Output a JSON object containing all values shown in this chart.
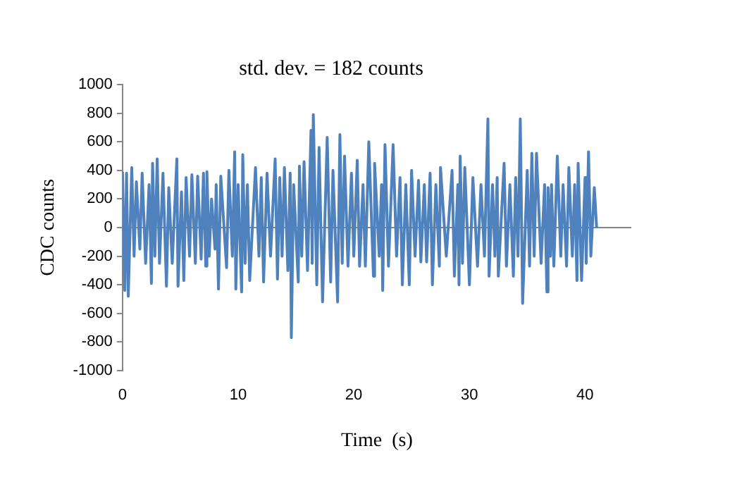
{
  "chart_data": {
    "type": "line",
    "title": "std. dev. = 182 counts",
    "xlabel": "Time  (s)",
    "ylabel": "CDC counts",
    "xlim": [
      0,
      44
    ],
    "xticks": [
      0,
      10,
      20,
      30,
      40
    ],
    "ylim": [
      -1000,
      1000
    ],
    "yticks": [
      {
        "value": -1000,
        "label": "-1000"
      },
      -800,
      -600,
      -400,
      -200,
      0,
      200,
      400,
      600,
      800,
      {
        "value": 1000,
        "label": "1000"
      }
    ],
    "series": [
      {
        "color": "#4f81bd",
        "x": [
          0,
          0.2,
          0.35,
          0.5,
          0.8,
          1.0,
          1.2,
          1.5,
          1.7,
          2.0,
          2.3,
          2.5,
          2.6,
          2.8,
          3.0,
          3.2,
          3.5,
          3.8,
          4.0,
          4.3,
          4.7,
          4.8,
          5.1,
          5.3,
          5.5,
          5.8,
          6.0,
          6.3,
          6.5,
          6.8,
          7.0,
          7.2,
          7.3,
          7.5,
          7.7,
          8.0,
          8.1,
          8.3,
          8.5,
          9.0,
          9.2,
          9.5,
          9.7,
          9.8,
          10.0,
          10.3,
          10.4,
          10.6,
          10.8,
          11.0,
          11.5,
          11.8,
          12.0,
          12.2,
          12.5,
          12.8,
          13.2,
          13.4,
          13.6,
          13.8,
          14.0,
          14.3,
          14.5,
          14.6,
          14.8,
          15.2,
          15.3,
          15.5,
          15.7,
          16.0,
          16.3,
          16.4,
          16.5,
          16.8,
          17.0,
          17.3,
          17.7,
          18.0,
          18.2,
          18.6,
          18.8,
          19.0,
          19.2,
          19.5,
          19.8,
          20.0,
          20.3,
          20.5,
          20.8,
          21.0,
          21.3,
          21.7,
          21.8,
          22.2,
          22.4,
          22.5,
          22.7,
          23.0,
          23.4,
          23.7,
          24.0,
          24.2,
          24.5,
          24.8,
          25.0,
          25.3,
          25.6,
          25.8,
          26.1,
          26.3,
          26.6,
          26.8,
          27.1,
          27.4,
          27.5,
          28.0,
          28.5,
          28.7,
          29.0,
          29.1,
          29.2,
          29.4,
          29.6,
          30.0,
          30.3,
          30.7,
          31.0,
          31.3,
          31.6,
          31.7,
          32.0,
          32.2,
          32.4,
          32.5,
          33.0,
          33.2,
          33.5,
          33.8,
          34.0,
          34.2,
          34.4,
          34.6,
          35.0,
          35.2,
          35.4,
          35.6,
          35.8,
          36.2,
          36.5,
          36.7,
          36.8,
          37.0,
          37.1,
          37.3,
          37.6,
          37.9,
          38.1,
          38.4,
          38.6,
          38.9,
          39.1,
          39.3,
          39.4,
          39.7,
          40.0,
          40.1,
          40.3,
          40.5,
          40.8,
          41.0
        ],
        "values": [
          390,
          -440,
          380,
          -480,
          420,
          -200,
          320,
          -150,
          380,
          -250,
          300,
          -390,
          450,
          -200,
          480,
          -250,
          380,
          -410,
          280,
          -250,
          480,
          -410,
          250,
          -370,
          350,
          -200,
          370,
          -250,
          360,
          -220,
          380,
          -270,
          390,
          -200,
          200,
          -150,
          300,
          -430,
          360,
          -280,
          400,
          -200,
          530,
          -430,
          300,
          -450,
          510,
          -250,
          300,
          -370,
          420,
          -200,
          350,
          -380,
          380,
          -200,
          480,
          -360,
          350,
          -200,
          420,
          -300,
          380,
          -770,
          300,
          -380,
          430,
          -200,
          460,
          -300,
          680,
          -250,
          790,
          -400,
          560,
          -520,
          630,
          -380,
          400,
          -520,
          650,
          -250,
          500,
          -270,
          380,
          -200,
          470,
          -270,
          300,
          -270,
          600,
          -340,
          450,
          -200,
          300,
          -440,
          580,
          -270,
          580,
          -200,
          350,
          -400,
          300,
          -400,
          400,
          -200,
          330,
          -240,
          300,
          -240,
          380,
          -400,
          300,
          -270,
          420,
          -200,
          400,
          -340,
          300,
          -400,
          500,
          -250,
          420,
          -400,
          350,
          -270,
          300,
          -200,
          760,
          -340,
          300,
          -200,
          350,
          -340,
          450,
          -270,
          300,
          -340,
          350,
          -200,
          760,
          -530,
          400,
          -270,
          520,
          -200,
          520,
          -250,
          300,
          -450,
          280,
          -200,
          300,
          -270,
          500,
          -200,
          300,
          -270,
          420,
          -200,
          300,
          -370,
          450,
          -370,
          350,
          -250,
          530,
          -200,
          280,
          0
        ]
      }
    ]
  }
}
